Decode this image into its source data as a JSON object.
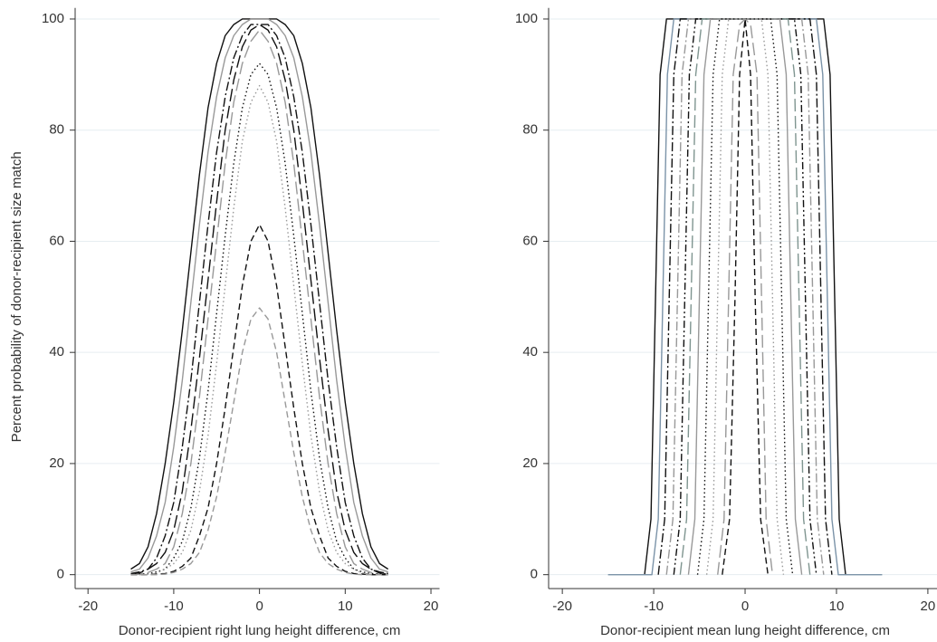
{
  "chart_data": [
    {
      "type": "line",
      "x_label": "Donor-recipient right lung height difference, cm",
      "y_label": "Percent probability of donor-recipient size match",
      "xlim": [
        -21.5,
        21
      ],
      "ylim": [
        -2.5,
        102
      ],
      "xticks": [
        -20,
        -10,
        0,
        10,
        20
      ],
      "yticks": [
        0,
        20,
        40,
        60,
        80,
        100
      ],
      "grid": true,
      "x": [
        -15,
        -14,
        -13,
        -12,
        -11,
        -10,
        -9,
        -8,
        -7,
        -6,
        -5,
        -4,
        -3,
        -2,
        -1,
        0,
        1,
        2,
        3,
        4,
        5,
        6,
        7,
        8,
        9,
        10,
        11,
        12,
        13,
        14,
        15
      ],
      "series": [
        {
          "color": "#111111",
          "dash": "",
          "values": [
            1,
            2,
            5,
            11,
            20,
            31,
            44,
            58,
            72,
            84,
            92,
            97,
            99,
            100,
            100,
            100,
            100,
            100,
            99,
            97,
            92,
            84,
            72,
            58,
            44,
            31,
            20,
            11,
            5,
            2,
            1
          ]
        },
        {
          "color": "#999999",
          "dash": "",
          "values": [
            0.5,
            1,
            3,
            7,
            13,
            23,
            35,
            49,
            63,
            76,
            86,
            93,
            97,
            99,
            100,
            100,
            100,
            99,
            97,
            93,
            86,
            76,
            63,
            49,
            35,
            23,
            13,
            7,
            3,
            1,
            0.5
          ]
        },
        {
          "color": "#111111",
          "dash": "10,3,2,3",
          "values": [
            0.2,
            0.5,
            1,
            3,
            7,
            13,
            23,
            35,
            49,
            63,
            76,
            86,
            93,
            97,
            99,
            99,
            99,
            97,
            93,
            86,
            76,
            63,
            49,
            35,
            23,
            13,
            7,
            3,
            1,
            0.5,
            0.2
          ]
        },
        {
          "color": "#111111",
          "dash": "14,5",
          "values": [
            0.1,
            0.3,
            1,
            2,
            4,
            8,
            15,
            26,
            39,
            53,
            67,
            80,
            89,
            95,
            98,
            99,
            98,
            95,
            89,
            80,
            67,
            53,
            39,
            26,
            15,
            8,
            4,
            2,
            1,
            0.3,
            0.1
          ]
        },
        {
          "color": "#999999",
          "dash": "14,5",
          "values": [
            0,
            0.1,
            0.4,
            1,
            2,
            5,
            11,
            20,
            32,
            46,
            60,
            74,
            85,
            92,
            96,
            98,
            96,
            92,
            85,
            74,
            60,
            46,
            32,
            20,
            11,
            5,
            2,
            1,
            0.4,
            0.1,
            0
          ]
        },
        {
          "color": "#111111",
          "dash": "1.5,3",
          "values": [
            0,
            0.1,
            0.2,
            0.5,
            1,
            3,
            6,
            12,
            21,
            33,
            47,
            61,
            74,
            84,
            90,
            92,
            90,
            84,
            74,
            61,
            47,
            33,
            21,
            12,
            6,
            3,
            1,
            0.5,
            0.2,
            0.1,
            0
          ]
        },
        {
          "color": "#999999",
          "dash": "1.5,3",
          "values": [
            0,
            0,
            0.1,
            0.3,
            1,
            2,
            4,
            8,
            15,
            25,
            38,
            52,
            66,
            78,
            85,
            88,
            85,
            78,
            66,
            52,
            38,
            25,
            15,
            8,
            4,
            2,
            1,
            0.3,
            0.1,
            0,
            0
          ]
        },
        {
          "color": "#111111",
          "dash": "7,4",
          "values": [
            0,
            0,
            0,
            0.1,
            0.2,
            0.6,
            1.5,
            3,
            7,
            12,
            20,
            30,
            41,
            52,
            60,
            63,
            60,
            52,
            41,
            30,
            20,
            12,
            7,
            3,
            1.5,
            0.6,
            0.2,
            0.1,
            0,
            0,
            0
          ]
        },
        {
          "color": "#999999",
          "dash": "7,4",
          "values": [
            0,
            0,
            0,
            0,
            0.1,
            0.4,
            1,
            2,
            4,
            8,
            14,
            22,
            31,
            40,
            46,
            48,
            46,
            40,
            31,
            22,
            14,
            8,
            4,
            2,
            1,
            0.4,
            0.1,
            0,
            0,
            0,
            0
          ]
        }
      ]
    },
    {
      "type": "line",
      "x_label": "Donor-recipient mean lung height difference, cm",
      "xlim": [
        -21.5,
        21
      ],
      "ylim": [
        -2.5,
        102
      ],
      "xticks": [
        -20,
        -10,
        0,
        10,
        20
      ],
      "yticks": [
        0,
        20,
        40,
        60,
        80,
        100
      ],
      "grid": true,
      "series": [
        {
          "color": "#111111",
          "dash": "",
          "x": [
            -11,
            -10.3,
            -9.8,
            -9.3,
            -8.6,
            8.6,
            9.3,
            9.8,
            10.3,
            11
          ],
          "values": [
            0,
            10,
            50,
            90,
            100,
            100,
            90,
            50,
            10,
            0
          ]
        },
        {
          "color": "#7b93a8",
          "dash": "",
          "x": [
            -15,
            -10.2,
            -9.5,
            -9,
            -8.5,
            -7.8,
            7.8,
            8.5,
            9,
            9.5,
            10.2,
            15
          ],
          "values": [
            0,
            0,
            10,
            50,
            90,
            100,
            100,
            90,
            50,
            10,
            0,
            0
          ]
        },
        {
          "color": "#111111",
          "dash": "10,3,2,3",
          "x": [
            -9.5,
            -8.8,
            -8.3,
            -7.8,
            -7.1,
            7.1,
            7.8,
            8.3,
            8.8,
            9.5
          ],
          "values": [
            0,
            10,
            50,
            90,
            100,
            100,
            90,
            50,
            10,
            0
          ]
        },
        {
          "color": "#999999",
          "dash": "10,3,2,3",
          "x": [
            -8.6,
            -7.9,
            -7.4,
            -6.9,
            -6.2,
            6.2,
            6.9,
            7.4,
            7.9,
            8.6
          ],
          "values": [
            0,
            10,
            50,
            90,
            100,
            100,
            90,
            50,
            10,
            0
          ]
        },
        {
          "color": "#111111",
          "dash": "8,3,2,3,2,3",
          "x": [
            -7.8,
            -7.1,
            -6.6,
            -6.1,
            -5.4,
            5.4,
            6.1,
            6.6,
            7.1,
            7.8
          ],
          "values": [
            0,
            10,
            50,
            90,
            100,
            100,
            90,
            50,
            10,
            0
          ]
        },
        {
          "color": "#7f9590",
          "dash": "14,5",
          "x": [
            -7.1,
            -6.4,
            -5.9,
            -5.4,
            -4.7,
            4.7,
            5.4,
            5.9,
            6.4,
            7.1
          ],
          "values": [
            0,
            10,
            50,
            90,
            100,
            100,
            90,
            50,
            10,
            0
          ]
        },
        {
          "color": "#999999",
          "dash": "",
          "x": [
            -6.2,
            -5.5,
            -5,
            -4.5,
            -3.8,
            3.8,
            4.5,
            5,
            5.5,
            6.2
          ],
          "values": [
            0,
            10,
            50,
            90,
            100,
            100,
            90,
            50,
            10,
            0
          ]
        },
        {
          "color": "#111111",
          "dash": "1.5,3",
          "x": [
            -5.2,
            -4.5,
            -4,
            -3.5,
            -2.8,
            2.8,
            3.5,
            4,
            4.5,
            5.2
          ],
          "values": [
            0,
            10,
            50,
            90,
            100,
            100,
            90,
            50,
            10,
            0
          ]
        },
        {
          "color": "#999999",
          "dash": "1.5,3",
          "x": [
            -4.2,
            -3.5,
            -3,
            -2.5,
            -1.8,
            1.8,
            2.5,
            3,
            3.5,
            4.2
          ],
          "values": [
            0,
            10,
            50,
            90,
            100,
            100,
            90,
            50,
            10,
            0
          ]
        },
        {
          "color": "#999999",
          "dash": "14,5",
          "x": [
            -3,
            -2.3,
            -1.8,
            -1.3,
            -0.6,
            0,
            0.6,
            1.3,
            1.8,
            2.3,
            3
          ],
          "values": [
            0,
            10,
            50,
            90,
            99,
            100,
            99,
            90,
            50,
            10,
            0
          ]
        },
        {
          "color": "#111111",
          "dash": "7,4",
          "x": [
            -2.5,
            -1.7,
            -1.1,
            -0.6,
            0,
            0.6,
            1.1,
            1.7,
            2.5
          ],
          "values": [
            0,
            10,
            50,
            90,
            100,
            90,
            50,
            10,
            0
          ]
        }
      ]
    }
  ]
}
